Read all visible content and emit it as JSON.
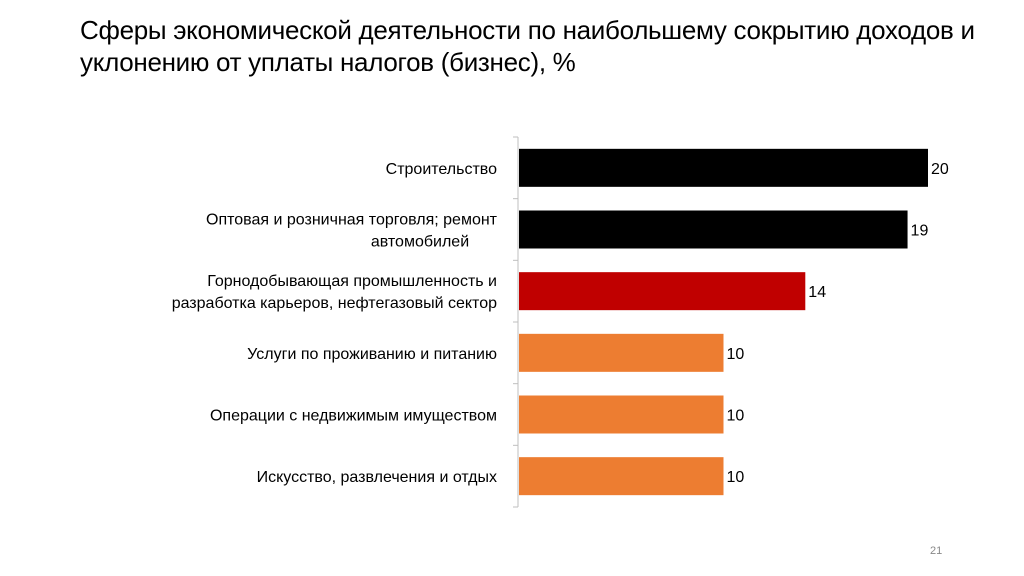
{
  "slide": {
    "title": "Сферы экономической деятельности по наибольшему сокрытию доходов и уклонению от уплаты налогов (бизнес), %",
    "page_number": "21"
  },
  "chart_data": {
    "type": "bar",
    "orientation": "horizontal",
    "title": "Сферы экономической деятельности по наибольшему сокрытию доходов и уклонению от уплаты налогов (бизнес), %",
    "categories": [
      [
        "Строительство"
      ],
      [
        "Оптовая и розничная торговля; ремонт",
        "автомобилей"
      ],
      [
        "Горнодобывающая промышленность и",
        "разработка карьеров, нефтегазовый сектор"
      ],
      [
        "Услуги по проживанию и питанию"
      ],
      [
        "Операции с недвижимым имуществом"
      ],
      [
        "Искусство, развлечения и отдых"
      ]
    ],
    "values": [
      20,
      19,
      14,
      10,
      10,
      10
    ],
    "bar_colors": [
      "#000000",
      "#000000",
      "#c00000",
      "#ed7d31",
      "#ed7d31",
      "#ed7d31"
    ],
    "xlim": [
      0,
      20
    ],
    "grid": false,
    "legend": "none"
  }
}
